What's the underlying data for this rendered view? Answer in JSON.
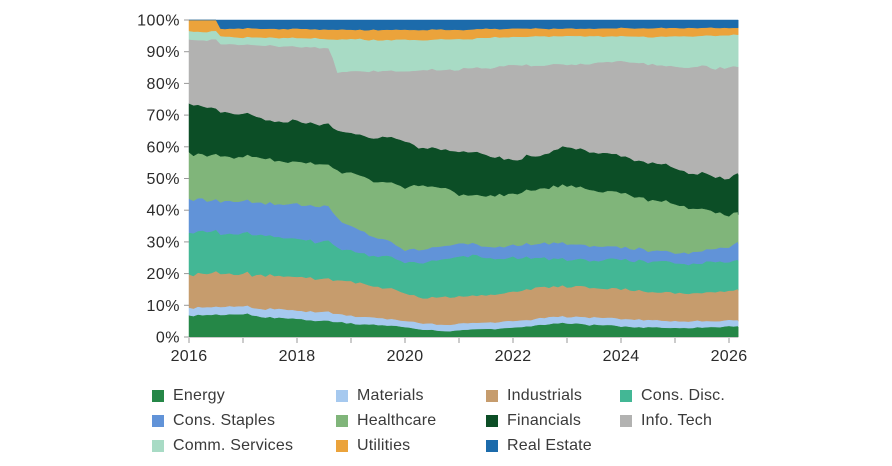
{
  "page": {
    "background": "#ffffff"
  },
  "chart_data": {
    "type": "area",
    "stacked": "100-percent",
    "title": "",
    "grid": false,
    "x_axis": {
      "range": [
        2016,
        2026.17
      ],
      "major_tick_years": [
        2016,
        2018,
        2020,
        2022,
        2024,
        2026
      ],
      "major_tick_labels": [
        "2016",
        "2018",
        "2020",
        "2022",
        "2024",
        "2026"
      ],
      "minor_tick_years": [
        2016,
        2017,
        2018,
        2019,
        2020,
        2021,
        2022,
        2023,
        2024,
        2025,
        2026
      ]
    },
    "y_axis": {
      "range": [
        0,
        100
      ],
      "tick_labels_top_to_bottom": [
        "100%",
        "90%",
        "80%",
        "70%",
        "60%",
        "50%",
        "40%",
        "30%",
        "20%",
        "10%",
        "0%"
      ]
    },
    "series": [
      {
        "key": "energy",
        "label": "Energy",
        "color": "#258747",
        "points": [
          [
            2016,
            6.5
          ],
          [
            2016.5,
            7.0
          ],
          [
            2017,
            7.2
          ],
          [
            2017.5,
            6.3
          ],
          [
            2018,
            5.6
          ],
          [
            2018.5,
            5.2
          ],
          [
            2019,
            4.3
          ],
          [
            2019.5,
            3.8
          ],
          [
            2020,
            3.3
          ],
          [
            2020.3,
            2.4
          ],
          [
            2020.8,
            1.9
          ],
          [
            2021,
            2.2
          ],
          [
            2021.5,
            2.5
          ],
          [
            2022,
            2.9
          ],
          [
            2022.5,
            3.8
          ],
          [
            2023,
            4.4
          ],
          [
            2023.5,
            3.9
          ],
          [
            2024,
            3.3
          ],
          [
            2024.5,
            3.1
          ],
          [
            2025,
            2.9
          ],
          [
            2025.5,
            3.0
          ],
          [
            2026,
            3.4
          ],
          [
            2026.17,
            3.3
          ]
        ]
      },
      {
        "key": "materials",
        "label": "Materials",
        "color": "#a6c9ef",
        "points": [
          [
            2016,
            2.4
          ],
          [
            2017,
            2.5
          ],
          [
            2017.5,
            2.7
          ],
          [
            2018,
            2.7
          ],
          [
            2018.5,
            2.8
          ],
          [
            2019,
            2.4
          ],
          [
            2019.5,
            2.2
          ],
          [
            2020,
            2.0
          ],
          [
            2020.8,
            2.0
          ],
          [
            2021.5,
            2.1
          ],
          [
            2022,
            2.1
          ],
          [
            2023,
            2.1
          ],
          [
            2023.5,
            2.3
          ],
          [
            2024,
            2.5
          ],
          [
            2024.5,
            2.3
          ],
          [
            2025,
            2.2
          ],
          [
            2025.5,
            2.0
          ],
          [
            2026,
            1.9
          ],
          [
            2026.17,
            1.8
          ]
        ]
      },
      {
        "key": "industrials",
        "label": "Industrials",
        "color": "#c69c6d",
        "points": [
          [
            2016,
            10.6
          ],
          [
            2016.5,
            10.5
          ],
          [
            2017,
            10.3
          ],
          [
            2017.5,
            10.5
          ],
          [
            2018,
            10.4
          ],
          [
            2018.5,
            10.3
          ],
          [
            2019,
            10.5
          ],
          [
            2019.5,
            10.0
          ],
          [
            2020,
            8.6
          ],
          [
            2020.3,
            8.0
          ],
          [
            2020.8,
            8.6
          ],
          [
            2021,
            8.6
          ],
          [
            2021.5,
            8.6
          ],
          [
            2022,
            9.4
          ],
          [
            2022.5,
            9.4
          ],
          [
            2023,
            9.8
          ],
          [
            2023.5,
            9.4
          ],
          [
            2024,
            9.0
          ],
          [
            2024.5,
            8.9
          ],
          [
            2025,
            8.8
          ],
          [
            2025.5,
            9.0
          ],
          [
            2026,
            9.1
          ],
          [
            2026.17,
            9.9
          ]
        ]
      },
      {
        "key": "cons-disc",
        "label": "Cons. Disc.",
        "color": "#43b795",
        "points": [
          [
            2016,
            13.5
          ],
          [
            2016.5,
            13.0
          ],
          [
            2017,
            12.5
          ],
          [
            2017.5,
            12.5
          ],
          [
            2018,
            11.9
          ],
          [
            2018.64,
            11.9
          ],
          [
            2018.7,
            10.0
          ],
          [
            2019,
            9.5
          ],
          [
            2019.5,
            9.5
          ],
          [
            2020,
            10.0
          ],
          [
            2020.3,
            11.0
          ],
          [
            2020.8,
            12.0
          ],
          [
            2021,
            12.8
          ],
          [
            2021.5,
            12.1
          ],
          [
            2022,
            10.6
          ],
          [
            2022.5,
            9.3
          ],
          [
            2023,
            8.1
          ],
          [
            2023.5,
            8.8
          ],
          [
            2024,
            9.6
          ],
          [
            2024.5,
            9.5
          ],
          [
            2025,
            9.6
          ],
          [
            2025.5,
            9.3
          ],
          [
            2026,
            9.5
          ],
          [
            2026.17,
            9.2
          ]
        ]
      },
      {
        "key": "cons-staples",
        "label": "Cons. Staples",
        "color": "#6193d8",
        "points": [
          [
            2016,
            10.5
          ],
          [
            2016.5,
            10.2
          ],
          [
            2017,
            10.2
          ],
          [
            2017.5,
            10.2
          ],
          [
            2018,
            11.0
          ],
          [
            2018.5,
            11.0
          ],
          [
            2019,
            7.8
          ],
          [
            2019.5,
            5.5
          ],
          [
            2020,
            3.6
          ],
          [
            2020.5,
            4.3
          ],
          [
            2021,
            3.9
          ],
          [
            2021.5,
            3.5
          ],
          [
            2022,
            3.9
          ],
          [
            2022.5,
            4.5
          ],
          [
            2023,
            5.1
          ],
          [
            2023.5,
            4.4
          ],
          [
            2024,
            3.9
          ],
          [
            2024.5,
            3.5
          ],
          [
            2025,
            3.2
          ],
          [
            2025.5,
            3.8
          ],
          [
            2026,
            4.6
          ],
          [
            2026.17,
            5.4
          ]
        ]
      },
      {
        "key": "healthcare",
        "label": "Healthcare",
        "color": "#80b57a",
        "points": [
          [
            2016,
            14.3
          ],
          [
            2016.5,
            14.0
          ],
          [
            2017,
            14.2
          ],
          [
            2017.5,
            13.8
          ],
          [
            2018,
            13.4
          ],
          [
            2018.5,
            13.1
          ],
          [
            2019,
            16.5
          ],
          [
            2019.5,
            18.0
          ],
          [
            2020,
            19.5
          ],
          [
            2020.3,
            20.5
          ],
          [
            2020.8,
            17.7
          ],
          [
            2021,
            15.3
          ],
          [
            2021.5,
            15.7
          ],
          [
            2022,
            16.4
          ],
          [
            2022.5,
            17.0
          ],
          [
            2023,
            18.4
          ],
          [
            2023.5,
            17.5
          ],
          [
            2024,
            17.0
          ],
          [
            2024.5,
            16.0
          ],
          [
            2025,
            15.3
          ],
          [
            2025.5,
            13.2
          ],
          [
            2026,
            10.0
          ],
          [
            2026.17,
            9.7
          ]
        ]
      },
      {
        "key": "financials",
        "label": "Financials",
        "color": "#0c4e26",
        "points": [
          [
            2016,
            15.6
          ],
          [
            2016.5,
            14.3
          ],
          [
            2017,
            13.5
          ],
          [
            2017.5,
            12.3
          ],
          [
            2018,
            12.6
          ],
          [
            2018.5,
            12.8
          ],
          [
            2019,
            12.4
          ],
          [
            2019.5,
            13.5
          ],
          [
            2020,
            15.0
          ],
          [
            2020.3,
            11.5
          ],
          [
            2020.8,
            12.5
          ],
          [
            2021,
            13.7
          ],
          [
            2021.5,
            13.0
          ],
          [
            2022,
            10.7
          ],
          [
            2022.5,
            10.7
          ],
          [
            2023,
            12.1
          ],
          [
            2023.5,
            12.0
          ],
          [
            2024,
            11.7
          ],
          [
            2024.5,
            11.5
          ],
          [
            2025,
            11.5
          ],
          [
            2025.5,
            11.0
          ],
          [
            2026,
            11.5
          ],
          [
            2026.17,
            12.5
          ]
        ]
      },
      {
        "key": "info-tech",
        "label": "Info. Tech",
        "color": "#b2b2b1",
        "points": [
          [
            2016,
            20.2
          ],
          [
            2016.5,
            21.5
          ],
          [
            2017,
            21.9
          ],
          [
            2017.5,
            23.7
          ],
          [
            2018,
            23.6
          ],
          [
            2018.64,
            24.1
          ],
          [
            2018.7,
            18.6
          ],
          [
            2019,
            19.2
          ],
          [
            2019.5,
            21.2
          ],
          [
            2020,
            21.6
          ],
          [
            2020.3,
            24.5
          ],
          [
            2020.8,
            25.5
          ],
          [
            2021,
            25.8
          ],
          [
            2021.5,
            27.5
          ],
          [
            2022,
            29.8
          ],
          [
            2022.5,
            28.1
          ],
          [
            2023,
            26.0
          ],
          [
            2023.5,
            28.0
          ],
          [
            2024,
            30.0
          ],
          [
            2024.5,
            31.0
          ],
          [
            2025,
            31.8
          ],
          [
            2025.5,
            34.0
          ],
          [
            2026,
            35.0
          ],
          [
            2026.17,
            33.2
          ]
        ]
      },
      {
        "key": "comm-services",
        "label": "Comm. Services",
        "color": "#a8dbc5",
        "points": [
          [
            2016,
            2.8
          ],
          [
            2017,
            2.3
          ],
          [
            2018,
            2.8
          ],
          [
            2018.64,
            2.9
          ],
          [
            2018.7,
            10.6
          ],
          [
            2019,
            10.0
          ],
          [
            2019.5,
            9.6
          ],
          [
            2020,
            10.0
          ],
          [
            2020.3,
            9.5
          ],
          [
            2021,
            9.7
          ],
          [
            2021.5,
            9.3
          ],
          [
            2022,
            9.0
          ],
          [
            2023,
            9.0
          ],
          [
            2024,
            7.8
          ],
          [
            2025,
            9.5
          ],
          [
            2025.5,
            10.0
          ],
          [
            2026,
            10.2
          ],
          [
            2026.17,
            10.3
          ]
        ]
      },
      {
        "key": "utilities",
        "label": "Utilities",
        "color": "#eba33b",
        "points": [
          [
            2016,
            3.6
          ],
          [
            2016.53,
            3.5
          ],
          [
            2016.58,
            2.5
          ],
          [
            2017,
            2.8
          ],
          [
            2018,
            2.8
          ],
          [
            2019,
            3.0
          ],
          [
            2020,
            3.2
          ],
          [
            2021,
            3.0
          ],
          [
            2022,
            2.6
          ],
          [
            2023,
            2.3
          ],
          [
            2024,
            2.6
          ],
          [
            2025,
            2.7
          ],
          [
            2026,
            2.3
          ],
          [
            2026.17,
            2.1
          ]
        ]
      },
      {
        "key": "real-estate",
        "label": "Real Estate",
        "color": "#1c6bab",
        "points": [
          [
            2016,
            0
          ],
          [
            2016.53,
            0
          ],
          [
            2016.58,
            2.7
          ],
          [
            2017,
            2.6
          ],
          [
            2018,
            2.8
          ],
          [
            2019,
            3.0
          ],
          [
            2020,
            3.1
          ],
          [
            2021,
            3.0
          ],
          [
            2022,
            2.6
          ],
          [
            2023,
            2.7
          ],
          [
            2024,
            2.6
          ],
          [
            2025,
            2.5
          ],
          [
            2026,
            2.5
          ],
          [
            2026.17,
            2.4
          ]
        ]
      }
    ],
    "legend": {
      "position": "bottom",
      "items": [
        {
          "key": "energy",
          "label": "Energy",
          "color": "#258747",
          "column": 0,
          "row": 0
        },
        {
          "key": "materials",
          "label": "Materials",
          "color": "#a6c9ef",
          "column": 1,
          "row": 0
        },
        {
          "key": "industrials",
          "label": "Industrials",
          "color": "#c69c6d",
          "column": 2,
          "row": 0
        },
        {
          "key": "cons-disc",
          "label": "Cons. Disc.",
          "color": "#43b795",
          "column": 3,
          "row": 0
        },
        {
          "key": "cons-staples",
          "label": "Cons. Staples",
          "color": "#6193d8",
          "column": 0,
          "row": 1
        },
        {
          "key": "healthcare",
          "label": "Healthcare",
          "color": "#80b57a",
          "column": 1,
          "row": 1
        },
        {
          "key": "financials",
          "label": "Financials",
          "color": "#0c4e26",
          "column": 2,
          "row": 1
        },
        {
          "key": "info-tech",
          "label": "Info. Tech",
          "color": "#b2b2b1",
          "column": 3,
          "row": 1
        },
        {
          "key": "comm-services",
          "label": "Comm. Services",
          "color": "#a8dbc5",
          "column": 0,
          "row": 2
        },
        {
          "key": "utilities",
          "label": "Utilities",
          "color": "#eba33b",
          "column": 1,
          "row": 2
        },
        {
          "key": "real-estate",
          "label": "Real Estate",
          "color": "#1c6bab",
          "column": 2,
          "row": 2
        }
      ]
    }
  }
}
